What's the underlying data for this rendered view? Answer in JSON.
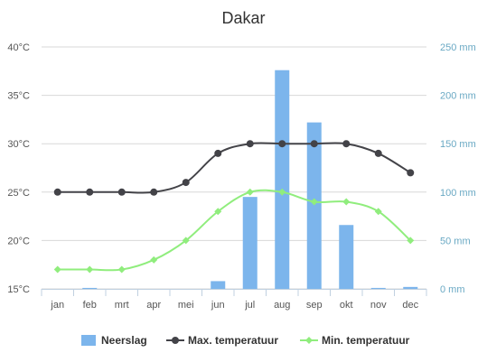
{
  "chart_data": {
    "type": "bar+line",
    "title": "Dakar",
    "categories": [
      "jan",
      "feb",
      "mrt",
      "apr",
      "mei",
      "jun",
      "jul",
      "aug",
      "sep",
      "okt",
      "nov",
      "dec"
    ],
    "y_left": {
      "min": 15,
      "max": 40,
      "ticks": [
        15,
        20,
        25,
        30,
        35,
        40
      ],
      "tick_labels": [
        "15°C",
        "20°C",
        "25°C",
        "30°C",
        "35°C",
        "40°C"
      ]
    },
    "y_right": {
      "min": 0,
      "max": 250,
      "ticks": [
        0,
        50,
        100,
        150,
        200,
        250
      ],
      "tick_labels": [
        "0 mm",
        "50 mm",
        "100 mm",
        "150 mm",
        "200 mm",
        "250 mm"
      ]
    },
    "grid": true,
    "legend_position": "bottom",
    "series": [
      {
        "name": "Neerslag",
        "type": "bar",
        "axis": "right",
        "color": "#7cb5ec",
        "values": [
          0,
          1,
          0,
          0,
          0,
          8,
          95,
          226,
          172,
          66,
          1,
          2
        ]
      },
      {
        "name": "Max. temperatuur",
        "type": "line",
        "axis": "left",
        "color": "#434348",
        "values": [
          25,
          25,
          25,
          25,
          26,
          29,
          30,
          30,
          30,
          30,
          29,
          27
        ]
      },
      {
        "name": "Min. temperatuur",
        "type": "line",
        "axis": "left",
        "color": "#90ed7d",
        "values": [
          17,
          17,
          17,
          18,
          20,
          23,
          25,
          25,
          24,
          24,
          23,
          20
        ]
      }
    ]
  }
}
